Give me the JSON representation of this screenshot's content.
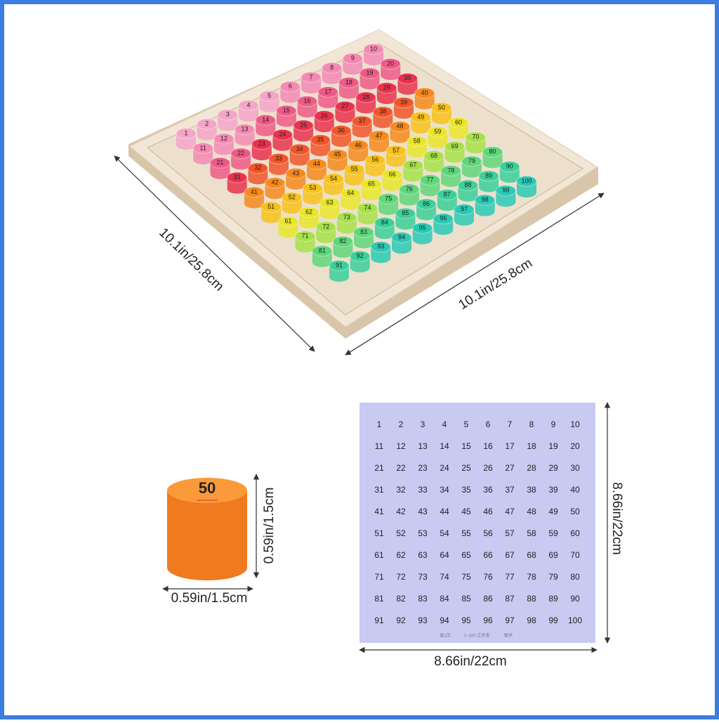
{
  "dimensions": {
    "board_left": "10.1in/25.8cm",
    "board_bottom": "10.1in/25.8cm",
    "peg_height": "0.59in/1.5cm",
    "peg_width": "0.59in/1.5cm",
    "sheet_height": "8.66in/22cm",
    "sheet_width": "8.66in/22cm"
  },
  "peg_sample": {
    "label": "50"
  },
  "board": {
    "pegs": [
      [
        1,
        2,
        3,
        4,
        5,
        6,
        7,
        8,
        9,
        10
      ],
      [
        11,
        12,
        13,
        14,
        15,
        16,
        17,
        18,
        19,
        20
      ],
      [
        21,
        22,
        23,
        24,
        25,
        26,
        27,
        28,
        29,
        30
      ],
      [
        31,
        32,
        33,
        34,
        35,
        36,
        37,
        38,
        39,
        40
      ],
      [
        41,
        42,
        43,
        44,
        45,
        46,
        47,
        48,
        49,
        50
      ],
      [
        51,
        52,
        53,
        54,
        55,
        56,
        57,
        58,
        59,
        60
      ],
      [
        61,
        62,
        63,
        64,
        65,
        66,
        67,
        68,
        69,
        70
      ],
      [
        71,
        72,
        73,
        74,
        75,
        76,
        77,
        78,
        79,
        80
      ],
      [
        81,
        82,
        83,
        84,
        85,
        86,
        87,
        88,
        89,
        90
      ],
      [
        91,
        92,
        93,
        94,
        95,
        96,
        97,
        98,
        99,
        100
      ]
    ]
  },
  "sheet": {
    "rows": [
      [
        1,
        2,
        3,
        4,
        5,
        6,
        7,
        8,
        9,
        10
      ],
      [
        11,
        12,
        13,
        14,
        15,
        16,
        17,
        18,
        19,
        20
      ],
      [
        21,
        22,
        23,
        24,
        25,
        26,
        27,
        28,
        29,
        30
      ],
      [
        31,
        32,
        33,
        34,
        35,
        36,
        37,
        38,
        39,
        40
      ],
      [
        41,
        42,
        43,
        44,
        45,
        46,
        47,
        48,
        49,
        50
      ],
      [
        51,
        52,
        53,
        54,
        55,
        56,
        57,
        58,
        59,
        60
      ],
      [
        61,
        62,
        63,
        64,
        65,
        66,
        67,
        68,
        69,
        70
      ],
      [
        71,
        72,
        73,
        74,
        75,
        76,
        77,
        78,
        79,
        80
      ],
      [
        81,
        82,
        83,
        84,
        85,
        86,
        87,
        88,
        89,
        90
      ],
      [
        91,
        92,
        93,
        94,
        95,
        96,
        97,
        98,
        99,
        100
      ]
    ],
    "footer": [
      "第1页",
      "1~100 正序表",
      "数学"
    ]
  }
}
